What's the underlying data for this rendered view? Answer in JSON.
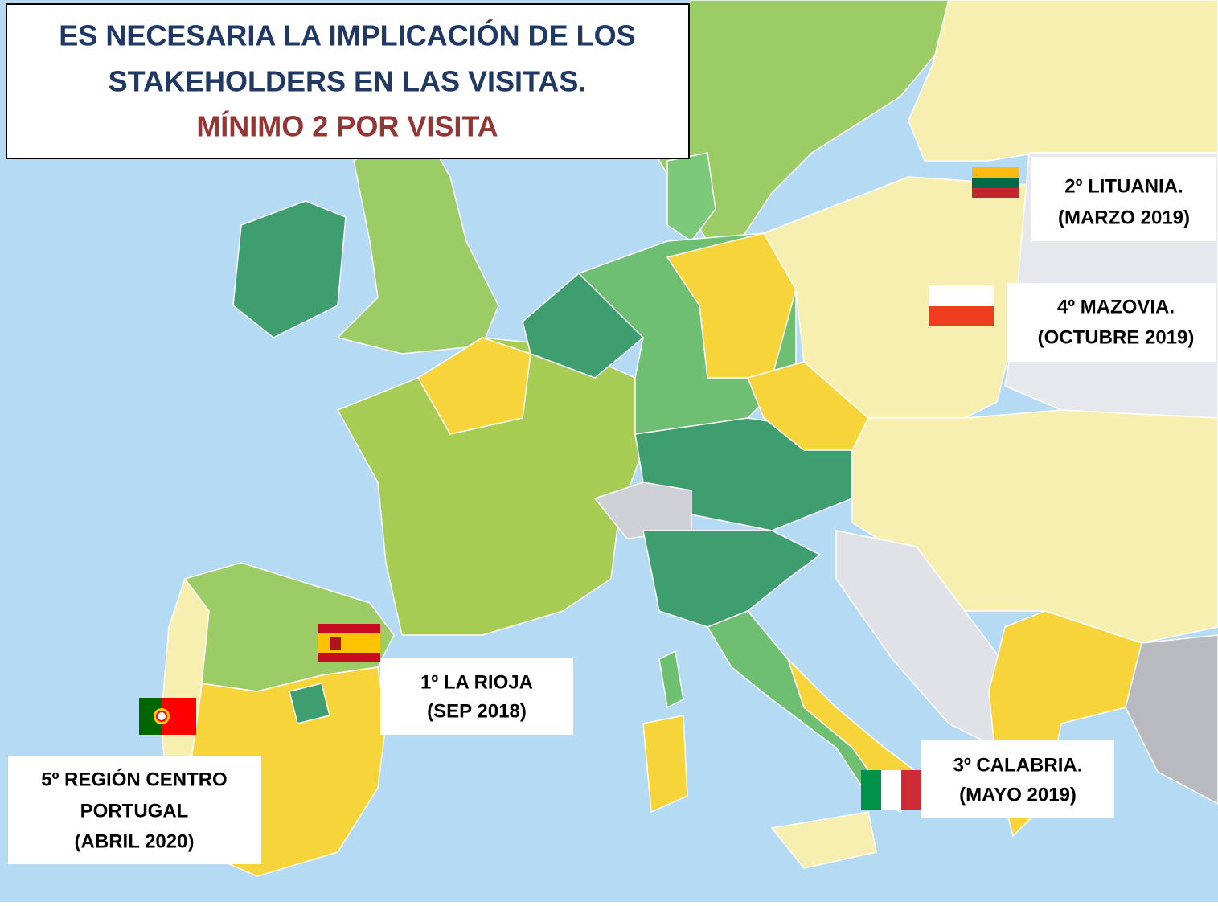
{
  "title": {
    "lines": [
      "ES NECESARIA LA IMPLICACIÓN DE LOS",
      "STAKEHOLDERS EN LAS VISITAS."
    ],
    "highlight": "MÍNIMO 2 POR VISITA"
  },
  "visits": [
    {
      "lines": [
        "2º LITUANIA.",
        "(MARZO 2019)"
      ]
    },
    {
      "lines": [
        "4º MAZOVIA.",
        "(OCTUBRE 2019)"
      ]
    },
    {
      "lines": [
        "1º LA RIOJA",
        "(SEP 2018)"
      ]
    },
    {
      "lines": [
        "3º CALABRIA.",
        "(MAYO 2019)"
      ]
    },
    {
      "lines": [
        "5º REGIÓN CENTRO",
        "PORTUGAL",
        "(ABRIL 2020)"
      ]
    }
  ]
}
